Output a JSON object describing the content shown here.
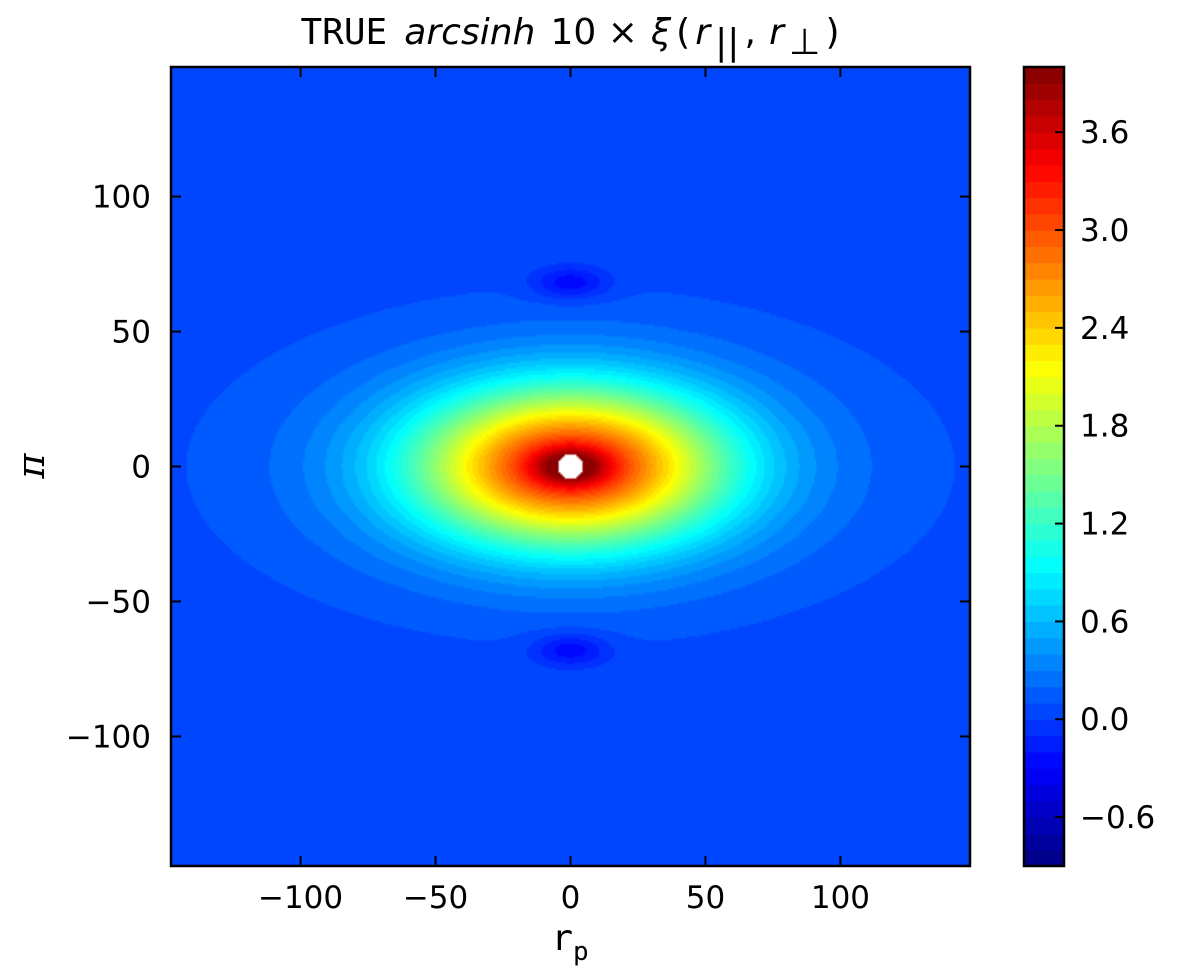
{
  "chart_data": {
    "type": "heatmap",
    "title": {
      "prefix": "TRUE",
      "func": "arcsinh",
      "factor": "10 ×",
      "sym": "ξ",
      "open": "(",
      "r1": "r",
      "sub1": "||",
      "comma": ",",
      "r2": "r",
      "sub2": "⊥",
      "close": ")"
    },
    "xlabel": {
      "main": "r",
      "sub": "p"
    },
    "ylabel": "π",
    "xlim": [
      -148,
      148
    ],
    "ylim": [
      -148,
      148
    ],
    "xticks": [
      -100,
      -50,
      0,
      50,
      100
    ],
    "xtick_labels": [
      "−100",
      "−50",
      "0",
      "50",
      "100"
    ],
    "yticks": [
      -100,
      -50,
      0,
      50,
      100
    ],
    "ytick_labels": [
      "−100",
      "−50",
      "0",
      "50",
      "100"
    ],
    "colorbar": {
      "range": [
        -0.9,
        4.0
      ],
      "ticks": [
        -0.6,
        0.0,
        0.6,
        1.2,
        1.8,
        2.4,
        3.0,
        3.6
      ],
      "tick_labels": [
        "−0.6",
        "0.0",
        "0.6",
        "1.2",
        "1.8",
        "2.4",
        "3.0",
        "3.6"
      ],
      "colormap": "jet"
    },
    "field": {
      "background_level": 0.05,
      "peak": {
        "x": 0,
        "y": 0,
        "value": 4.0
      },
      "central_excess": {
        "width_rp": 55,
        "width_pi": 28,
        "amplitude": 3.0
      },
      "wing_enhancements": [
        {
          "x": 0,
          "y": 0,
          "width_rp": 100,
          "width_pi": 45,
          "amplitude": 0.35
        }
      ],
      "negative_features": [
        {
          "x": 0,
          "y": 68,
          "width_rp": 14,
          "width_pi": 6,
          "amplitude": -0.35
        },
        {
          "x": 0,
          "y": -68,
          "width_rp": 14,
          "width_pi": 6,
          "amplitude": -0.35
        }
      ],
      "masked_center": {
        "x": 0,
        "y": 0,
        "radius": 4.5
      }
    }
  }
}
